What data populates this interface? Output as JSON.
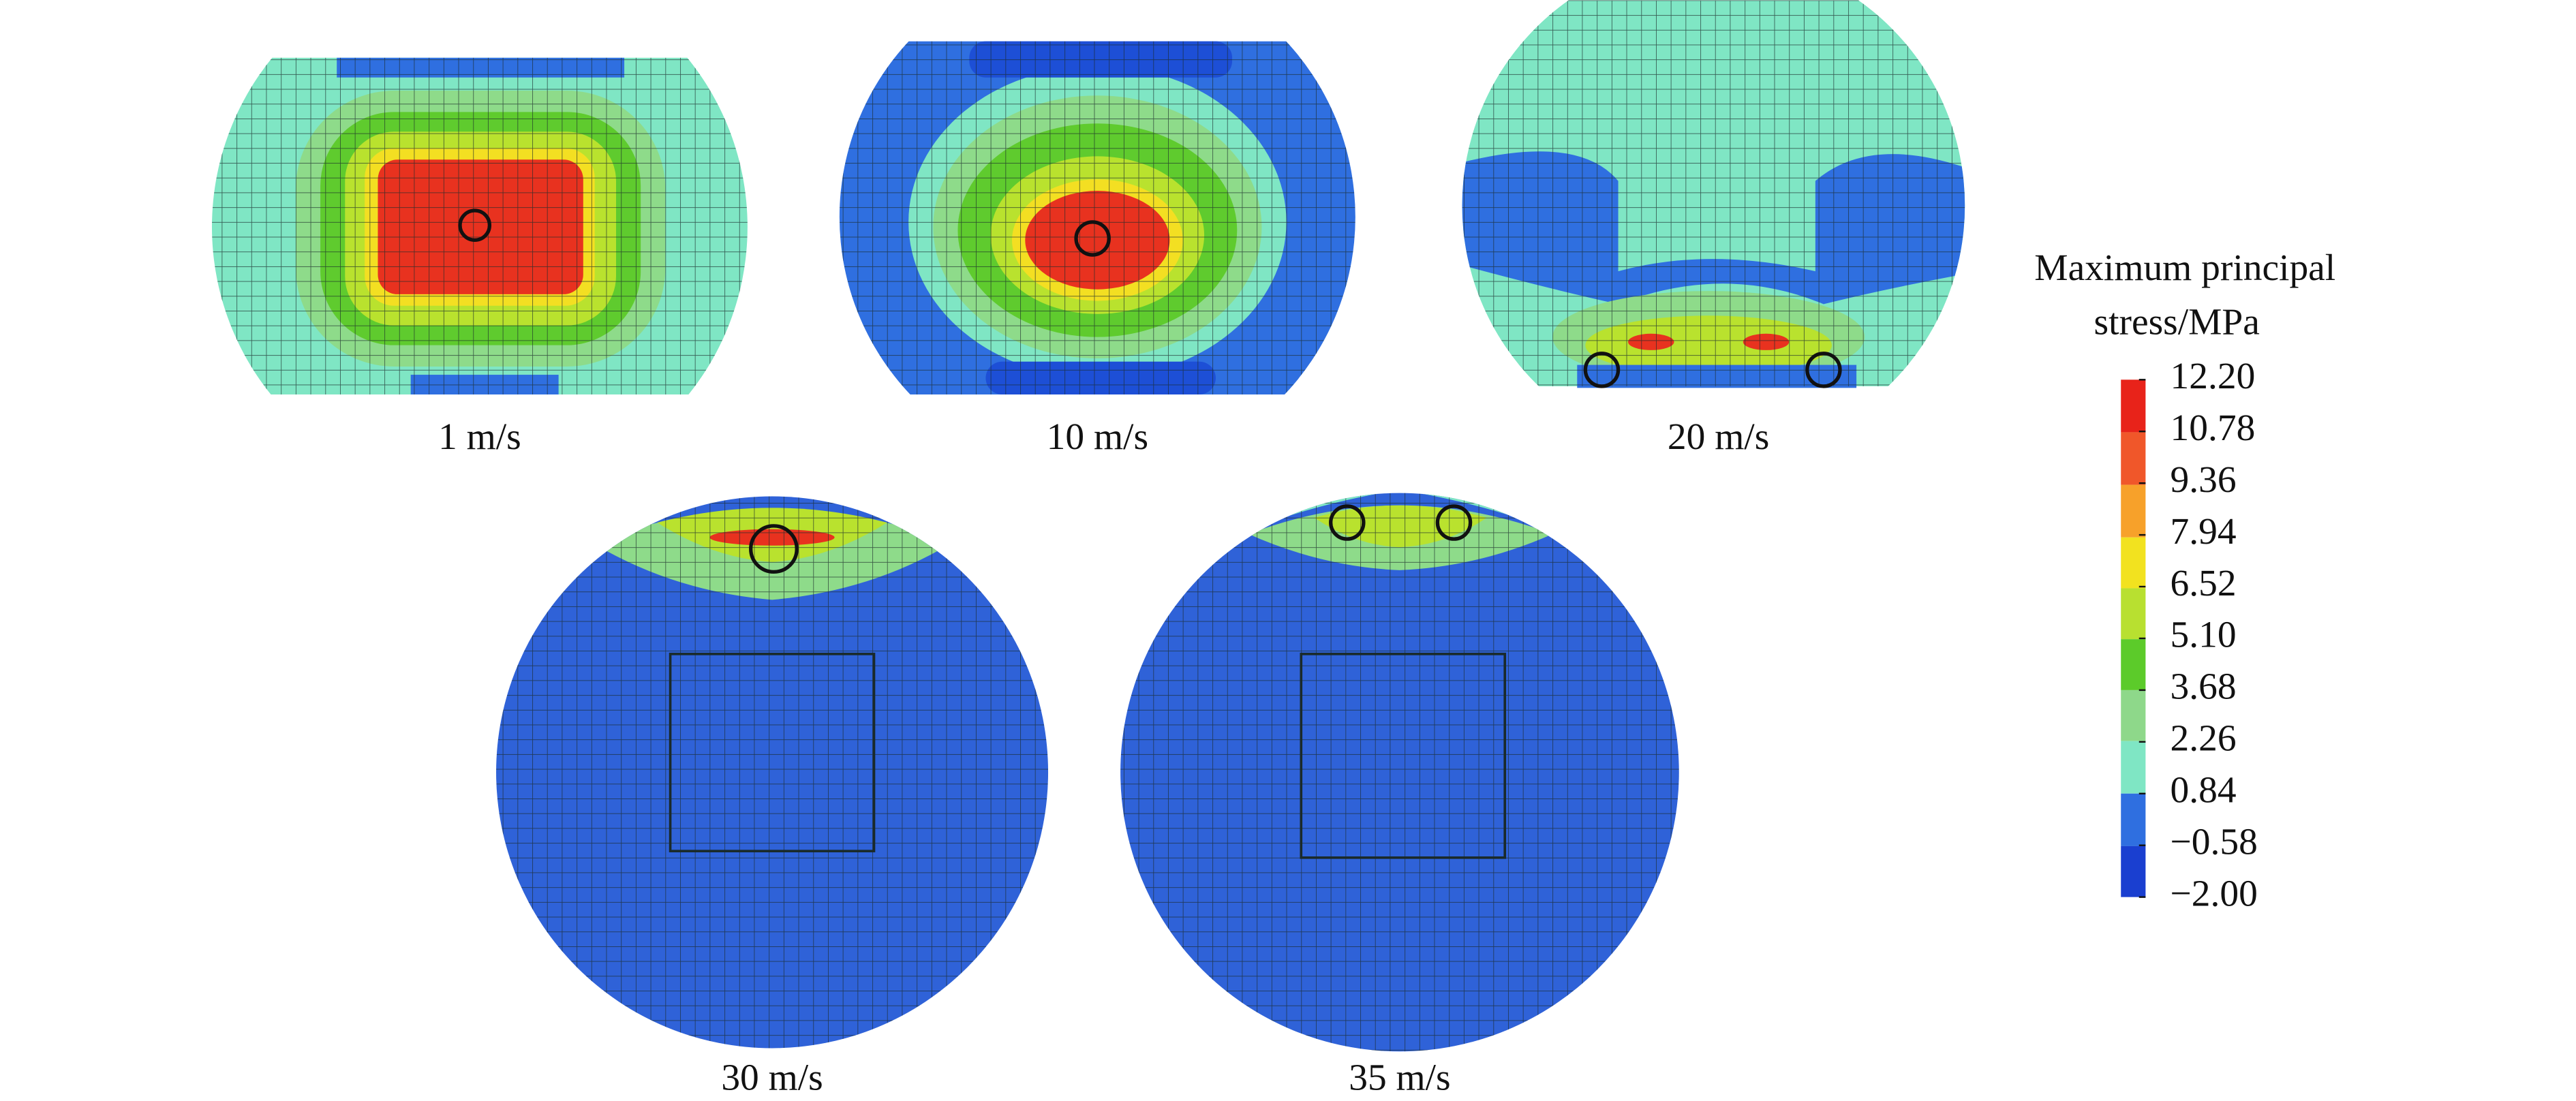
{
  "panels": [
    {
      "label": "1 m/s"
    },
    {
      "label": "10 m/s"
    },
    {
      "label": "20 m/s"
    },
    {
      "label": "30 m/s"
    },
    {
      "label": "35 m/s"
    }
  ],
  "legend": {
    "title_lines": [
      "Maximum principal",
      "stress/MPa"
    ],
    "ticks": [
      "12.20",
      "10.78",
      "9.36",
      "7.94",
      "6.52",
      "5.10",
      "3.68",
      "2.26",
      "0.84",
      "−0.58",
      "−2.00"
    ]
  }
}
